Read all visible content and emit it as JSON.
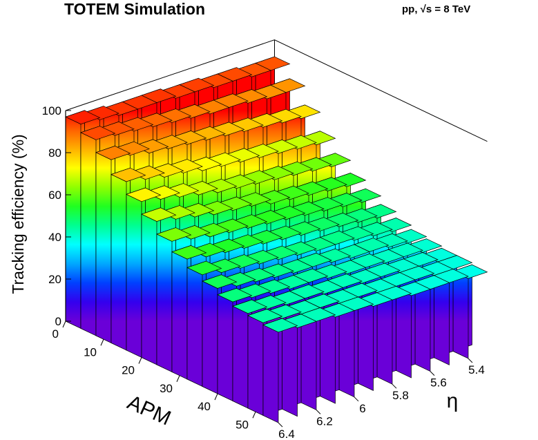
{
  "title": "TOTEM Simulation",
  "energy_label": "pp, √s = 8 TeV",
  "chart_data": {
    "type": "lego",
    "zlabel": "Tracking efficiency (%)",
    "xlabel": "APM",
    "ylabel": "η",
    "zlim": [
      0,
      100
    ],
    "x_ticks": [
      0,
      10,
      20,
      30,
      40,
      50
    ],
    "y_ticks": [
      6.4,
      6.2,
      6,
      5.8,
      5.6,
      5.4
    ],
    "z_ticks": [
      0,
      20,
      40,
      60,
      80,
      100
    ],
    "x": [
      2,
      6,
      10,
      14,
      18,
      22,
      26,
      30,
      34,
      38,
      42,
      46,
      50,
      54
    ],
    "eta": [
      6.35,
      6.25,
      6.15,
      6.05,
      5.95,
      5.85,
      5.75,
      5.65,
      5.55,
      5.45,
      5.35
    ],
    "values": [
      [
        97,
        96,
        95,
        95,
        95,
        94,
        94,
        93,
        93,
        92,
        92
      ],
      [
        93,
        92,
        91,
        90,
        89,
        88,
        87,
        87,
        86,
        85,
        85
      ],
      [
        87,
        86,
        84,
        83,
        82,
        81,
        80,
        79,
        78,
        77,
        76
      ],
      [
        80,
        78,
        76,
        75,
        73,
        72,
        71,
        70,
        69,
        68,
        67
      ],
      [
        74,
        72,
        70,
        68,
        66,
        65,
        64,
        63,
        62,
        61,
        60
      ],
      [
        68,
        66,
        64,
        62,
        61,
        60,
        58,
        57,
        56,
        55,
        54
      ],
      [
        62,
        60,
        58,
        57,
        56,
        55,
        54,
        53,
        52,
        51,
        50
      ],
      [
        57,
        55,
        54,
        53,
        52,
        51,
        50,
        49,
        48,
        47,
        46
      ],
      [
        53,
        51,
        50,
        49,
        48,
        47,
        46,
        46,
        45,
        44,
        43
      ],
      [
        50,
        48,
        47,
        46,
        45,
        45,
        44,
        43,
        43,
        42,
        41
      ],
      [
        47,
        46,
        45,
        44,
        44,
        43,
        42,
        42,
        41,
        41,
        40
      ],
      [
        45,
        44,
        43,
        43,
        42,
        42,
        41,
        41,
        40,
        40,
        39
      ],
      [
        44,
        43,
        42,
        42,
        41,
        41,
        40,
        40,
        40,
        39,
        39
      ],
      [
        43,
        42,
        42,
        41,
        41,
        40,
        40,
        39,
        39,
        39,
        38
      ]
    ],
    "colormap": [
      "#6a00d8",
      "#3300ee",
      "#0040ff",
      "#00a8ff",
      "#00ffff",
      "#00ff90",
      "#20ff20",
      "#90ff00",
      "#ffff00",
      "#ffb000",
      "#ff6000",
      "#ff0000"
    ]
  }
}
